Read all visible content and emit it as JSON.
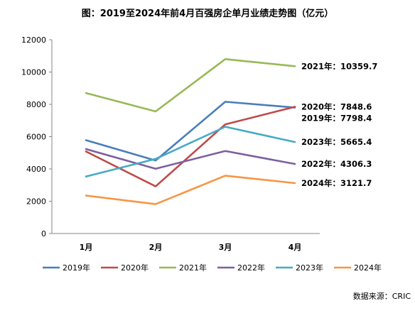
{
  "chart_data": {
    "type": "line",
    "title": "图：2019至2024年前4月百强房企单月业绩走势图（亿元）",
    "categories": [
      "1月",
      "2月",
      "3月",
      "4月"
    ],
    "ylim": [
      0,
      12000
    ],
    "yticks": [
      0,
      2000,
      4000,
      6000,
      8000,
      10000,
      12000
    ],
    "grid": false,
    "legend_position": "bottom",
    "series": [
      {
        "name": "2019年",
        "color": "#4a7ebb",
        "values": [
          5780,
          4520,
          8160,
          7798.4
        ],
        "end_label": "2019年：7798.4"
      },
      {
        "name": "2020年",
        "color": "#be4b48",
        "values": [
          5080,
          2920,
          6760,
          7848.6
        ],
        "end_label": "2020年：7848.6"
      },
      {
        "name": "2021年",
        "color": "#98b954",
        "values": [
          8700,
          7560,
          10800,
          10359.7
        ],
        "end_label": "2021年：10359.7"
      },
      {
        "name": "2022年",
        "color": "#7d60a0",
        "values": [
          5230,
          4010,
          5110,
          4306.3
        ],
        "end_label": "2022年：4306.3"
      },
      {
        "name": "2023年",
        "color": "#46aac5",
        "values": [
          3530,
          4620,
          6610,
          5665.4
        ],
        "end_label": "2023年：5665.4"
      },
      {
        "name": "2024年",
        "color": "#f79646",
        "values": [
          2350,
          1820,
          3580,
          3121.7
        ],
        "end_label": "2024年：3121.7"
      }
    ],
    "source": "数据来源：CRIC"
  }
}
